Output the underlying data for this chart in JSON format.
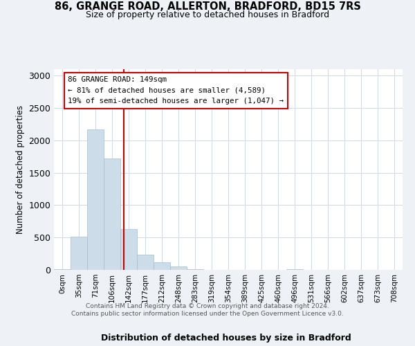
{
  "title_line1": "86, GRANGE ROAD, ALLERTON, BRADFORD, BD15 7RS",
  "title_line2": "Size of property relative to detached houses in Bradford",
  "xlabel": "Distribution of detached houses by size in Bradford",
  "ylabel": "Number of detached properties",
  "bar_labels": [
    "0sqm",
    "35sqm",
    "71sqm",
    "106sqm",
    "142sqm",
    "177sqm",
    "212sqm",
    "248sqm",
    "283sqm",
    "319sqm",
    "354sqm",
    "389sqm",
    "425sqm",
    "460sqm",
    "496sqm",
    "531sqm",
    "566sqm",
    "602sqm",
    "637sqm",
    "673sqm",
    "708sqm"
  ],
  "bar_heights": [
    10,
    510,
    2175,
    1725,
    630,
    240,
    120,
    50,
    15,
    5,
    5,
    3,
    2,
    2,
    8,
    1,
    1,
    0,
    0,
    0,
    0
  ],
  "bar_color": "#ccdce8",
  "bar_edge_color": "#aabccc",
  "red_line_color": "#cc0000",
  "annotation_line1": "86 GRANGE ROAD: 149sqm",
  "annotation_line2": "← 81% of detached houses are smaller (4,589)",
  "annotation_line3": "19% of semi-detached houses are larger (1,047) →",
  "ylim": [
    0,
    3100
  ],
  "yticks": [
    0,
    500,
    1000,
    1500,
    2000,
    2500,
    3000
  ],
  "footer_text": "Contains HM Land Registry data © Crown copyright and database right 2024.\nContains public sector information licensed under the Open Government Licence v3.0.",
  "background_color": "#eef2f6",
  "plot_background_color": "#ffffff",
  "grid_color": "#d0d8e4"
}
